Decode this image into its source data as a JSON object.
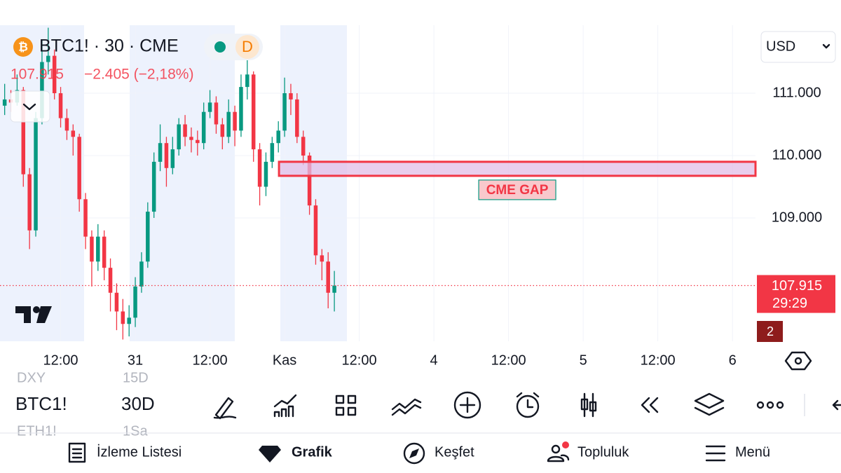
{
  "header": {
    "symbol": "BTC1! · 30 · CME",
    "badge": "D",
    "change": "−2.405 (−2,18%)",
    "currency": "USD"
  },
  "chart_data": {
    "type": "candlestick",
    "x": [
      -21,
      -20,
      -19,
      -18,
      -17,
      -16,
      -15,
      -14,
      -13,
      -12,
      -11,
      -10,
      -9,
      -8,
      -7,
      -6,
      -5,
      -4,
      -3,
      -2,
      -1,
      0,
      1,
      2,
      3,
      4,
      5,
      6,
      7,
      8,
      9,
      10,
      11,
      12,
      13,
      14,
      15,
      16,
      17,
      18,
      19,
      20,
      21,
      22,
      23,
      24,
      25,
      26,
      27,
      28,
      29,
      30,
      31,
      32
    ],
    "open": [
      110800,
      110900,
      110850,
      111050,
      109700,
      108800,
      110600,
      111500,
      111600,
      111000,
      110600,
      110400,
      110300,
      109300,
      108700,
      108300,
      108700,
      108200,
      107800,
      107500,
      107300,
      107400,
      107900,
      108300,
      109100,
      109900,
      110200,
      109800,
      110100,
      110500,
      110300,
      110250,
      110200,
      110700,
      110850,
      110500,
      110300,
      110700,
      110400,
      111100,
      111300,
      110100,
      109500,
      109900,
      110200,
      110400,
      111000,
      110900,
      110300,
      110000,
      109200,
      108400,
      108300,
      107800
    ],
    "high": [
      111150,
      111050,
      111300,
      111100,
      109800,
      110700,
      111850,
      112050,
      111700,
      111100,
      110750,
      110500,
      110350,
      109400,
      108800,
      108900,
      108800,
      108350,
      107950,
      107700,
      107600,
      108050,
      108450,
      109250,
      110050,
      110500,
      110300,
      110300,
      110600,
      110650,
      110450,
      110400,
      110850,
      111050,
      110950,
      110600,
      110900,
      110800,
      111300,
      111600,
      111350,
      110200,
      110050,
      110300,
      110550,
      111250,
      111150,
      111000,
      110400,
      110050,
      109300,
      108500,
      108450,
      108150
    ],
    "low": [
      110650,
      110700,
      110800,
      109500,
      108500,
      108700,
      110500,
      111300,
      110900,
      110450,
      110250,
      110000,
      109100,
      108500,
      107900,
      108150,
      108000,
      107500,
      107200,
      107050,
      107100,
      107250,
      107800,
      108200,
      109000,
      109750,
      109500,
      109700,
      110000,
      110150,
      110050,
      110000,
      110100,
      110600,
      110350,
      110100,
      110200,
      110150,
      110300,
      110900,
      109900,
      109200,
      109350,
      109800,
      110050,
      110300,
      110650,
      110200,
      109850,
      109050,
      108250,
      108000,
      107550,
      107500
    ],
    "close": [
      110900,
      110850,
      111050,
      109700,
      108800,
      110600,
      111500,
      111600,
      111000,
      110600,
      110400,
      110300,
      109300,
      108700,
      108300,
      108700,
      108200,
      107800,
      107500,
      107300,
      107400,
      107900,
      108300,
      109100,
      109900,
      110200,
      109800,
      110100,
      110500,
      110300,
      110250,
      110200,
      110700,
      110850,
      110500,
      110300,
      110700,
      110400,
      111100,
      111300,
      110100,
      109500,
      109900,
      110200,
      110400,
      111000,
      110900,
      110300,
      110000,
      109200,
      108400,
      108300,
      107800,
      107915
    ],
    "up_color": "#089981",
    "down_color": "#f23645",
    "xlim": [
      -21.75,
      99.7
    ],
    "ylim": [
      107022,
      112090
    ],
    "xticks": [
      {
        "value": -12,
        "label": "12:00"
      },
      {
        "value": 0,
        "label": "31"
      },
      {
        "value": 12,
        "label": "12:00"
      },
      {
        "value": 24,
        "label": "Kas"
      },
      {
        "value": 36,
        "label": "12:00"
      },
      {
        "value": 48,
        "label": "4"
      },
      {
        "value": 60,
        "label": "12:00"
      },
      {
        "value": 72,
        "label": "5"
      },
      {
        "value": 84,
        "label": "12:00"
      },
      {
        "value": 96,
        "label": "6"
      }
    ],
    "yticks": [
      {
        "value": 109000,
        "label": "109.000"
      },
      {
        "value": 110000,
        "label": "110.000"
      },
      {
        "value": 111000,
        "label": "111.000"
      }
    ],
    "grid": true,
    "last_price": {
      "value": 107915,
      "label": "107.915"
    },
    "countdown": "29:29",
    "annotations": [
      {
        "label": "CME GAP",
        "y_top": 109900,
        "y_bottom": 109675,
        "x_start": 23.1,
        "color": "#f23645"
      }
    ]
  },
  "badge_count": "2",
  "toolbar": {
    "symbol": "BTC1!",
    "interval": "30D",
    "peek": [
      "DXY",
      "15D",
      "ETH1!",
      "1Sa"
    ]
  },
  "nav": [
    "İzleme Listesi",
    "Grafik",
    "Keşfet",
    "Topluluk",
    "Menü"
  ]
}
